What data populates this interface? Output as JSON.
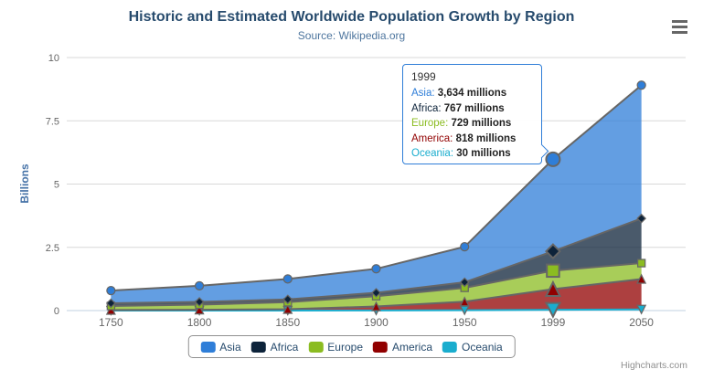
{
  "chart_data": {
    "type": "area",
    "stacking": "normal",
    "title": "Historic and Estimated Worldwide Population Growth by Region",
    "subtitle": "Source: Wikipedia.org",
    "categories": [
      "1750",
      "1800",
      "1850",
      "1900",
      "1950",
      "1999",
      "2050"
    ],
    "xlabel": "",
    "ylabel": "Billions",
    "unit": "millions",
    "ylim": [
      0,
      10
    ],
    "yticks": [
      0,
      2.5,
      5,
      7.5,
      10
    ],
    "grid": true,
    "legend_position": "bottom",
    "axis_line_color": "#c0d0e0",
    "grid_color": "#d8d8d8",
    "series_line_default_color": "#666666",
    "series": [
      {
        "name": "Asia",
        "color": "#2f7ed8",
        "line_color": "#666666",
        "marker": "circle",
        "values": [
          502,
          635,
          809,
          947,
          1402,
          3634,
          5268
        ]
      },
      {
        "name": "Africa",
        "color": "#0d233a",
        "line_color": "#666666",
        "marker": "diamond",
        "values": [
          106,
          107,
          111,
          133,
          221,
          767,
          1766
        ]
      },
      {
        "name": "Europe",
        "color": "#8bbc21",
        "line_color": "#666666",
        "marker": "square",
        "values": [
          163,
          203,
          276,
          408,
          547,
          729,
          628
        ]
      },
      {
        "name": "America",
        "color": "#910000",
        "line_color": "#666666",
        "marker": "triangle",
        "values": [
          18,
          31,
          54,
          156,
          339,
          818,
          1201
        ]
      },
      {
        "name": "Oceania",
        "color": "#1aadce",
        "line_color": "#1aadce",
        "marker": "triangle-down",
        "values": [
          2,
          2,
          2,
          6,
          13,
          30,
          46
        ]
      }
    ],
    "stack_order_bottom_to_top": [
      "Oceania",
      "America",
      "Europe",
      "Africa",
      "Asia"
    ],
    "hover_index": 5,
    "hovered_category": "1999"
  },
  "tooltip": {
    "header": "1999",
    "border_color": "#2f7ed8",
    "rows": [
      {
        "name": "Asia",
        "value": "3,634",
        "unit": "millions"
      },
      {
        "name": "Africa",
        "value": "767",
        "unit": "millions"
      },
      {
        "name": "Europe",
        "value": "729",
        "unit": "millions"
      },
      {
        "name": "America",
        "value": "818",
        "unit": "millions"
      },
      {
        "name": "Oceania",
        "value": "30",
        "unit": "millions"
      }
    ]
  },
  "legend": {
    "items": [
      "Asia",
      "Africa",
      "Europe",
      "America",
      "Oceania"
    ]
  },
  "icons": {
    "export_menu": "hamburger-menu-icon",
    "glyph": "≡"
  },
  "credits": {
    "label": "Highcharts.com"
  }
}
